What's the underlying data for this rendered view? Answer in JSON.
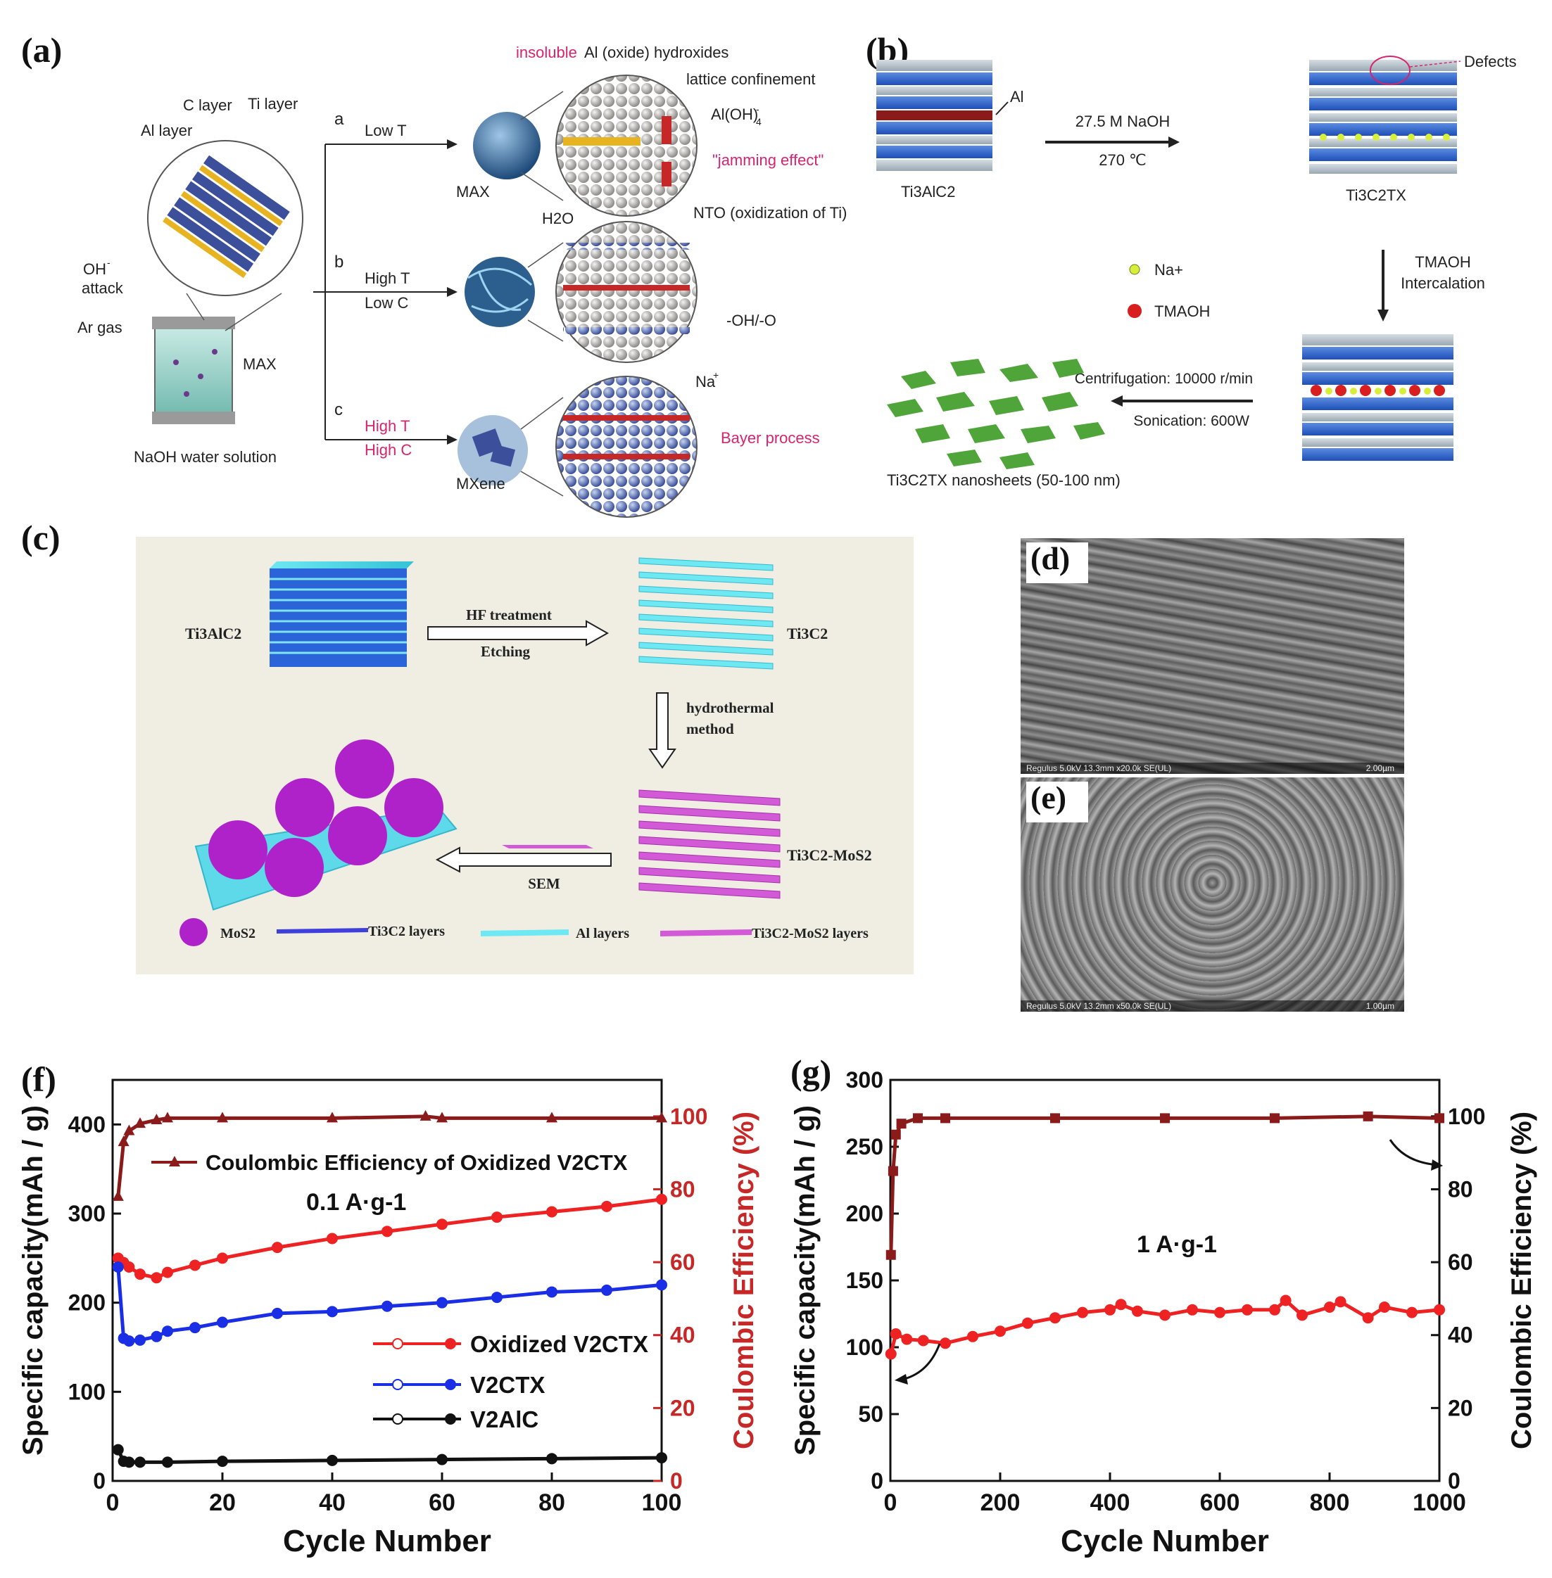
{
  "labels": {
    "a": "(a)",
    "b": "(b)",
    "c": "(c)",
    "d": "(d)",
    "e": "(e)",
    "f": "(f)",
    "g": "(g)"
  },
  "panel_a": {
    "c_layer": "C layer",
    "ti_layer": "Ti layer",
    "al_layer": "Al layer",
    "oh_attack_1": "OH",
    "oh_attack_sup": "-",
    "oh_attack_2": "attack",
    "ar_gas": "Ar gas",
    "max_vessel": "MAX",
    "naoh": "NaOH water solution",
    "route_a": "a",
    "route_b": "b",
    "route_c": "c",
    "low_t": "Low T",
    "high_t_b": "High T",
    "low_c": "Low C",
    "high_t_c": "High T",
    "high_c": "High C",
    "max_sphere": "MAX",
    "mxene": "MXene",
    "insoluble_1": "insoluble",
    "insoluble_2": "Al (oxide) hydroxides",
    "lattice": "lattice confinement",
    "aloh4": "Al(OH)",
    "aloh4_sub": "4",
    "aloh4_sup": "-",
    "jamming": "\"jamming effect\"",
    "h2o": "H2O",
    "nto": "NTO (oxidization of Ti)",
    "ohterm": "-OH/-O",
    "na_plus": "Na",
    "na_sup": "+",
    "bayer": "Bayer process"
  },
  "panel_b": {
    "al": "Al",
    "ti3alc2": "Ti3AlC2",
    "naoh": "27.5 M NaOH",
    "temp": "270 ℃",
    "defects": "Defects",
    "ti3c2tx": "Ti3C2TX",
    "na_legend": "Na+",
    "tmaoh_legend": "TMAOH",
    "tmaoh_1": "TMAOH",
    "tmaoh_2": "Intercalation",
    "centri": "Centrifugation: 10000 r/min",
    "sonic": "Sonication:  600W",
    "nanosheets": "Ti3C2TX nanosheets (50-100 nm)"
  },
  "panel_c": {
    "ti3alc2": "Ti3AlC2",
    "hf_1": "HF treatment",
    "hf_2": "Etching",
    "ti3c2": "Ti3C2",
    "hydro_1": "hydrothermal",
    "hydro_2": "method",
    "ti3c2_mos2": "Ti3C2-MoS2",
    "sem": "SEM",
    "leg_mos2": "MoS2",
    "leg_ti3c2": "Ti3C2 layers",
    "leg_al": "Al layers",
    "leg_ti3c2mos2": "Ti3C2-MoS2 layers"
  },
  "panel_d": {
    "footer": "Regulus 5.0kV 13.3mm x20.0k SE(UL)",
    "scale": "2.00µm"
  },
  "panel_e": {
    "footer": "Regulus 5.0kV 13.2mm x50.0k SE(UL)",
    "scale": "1.00µm"
  },
  "chart_data": [
    {
      "id": "f",
      "type": "line",
      "xlabel": "Cycle Number",
      "ylabel": "Specific capacity(mAh / g)",
      "y2label": "Coulombic Efficiency (%)",
      "xlim": [
        0,
        100
      ],
      "ylim": [
        0,
        450
      ],
      "y2lim": [
        0,
        110
      ],
      "xticks": [
        0,
        20,
        40,
        60,
        80,
        100
      ],
      "yticks": [
        0,
        100,
        200,
        300,
        400
      ],
      "y2ticks": [
        0,
        20,
        40,
        60,
        80,
        100
      ],
      "rate_label": "0.1 A·g-1",
      "series": [
        {
          "name": "Coulombic Efficiency of Oxidized V2CTX",
          "axis": "right",
          "color": "#8b1a1a",
          "marker": "triangle",
          "x": [
            1,
            2,
            3,
            5,
            8,
            10,
            20,
            40,
            57,
            60,
            80,
            100
          ],
          "values": [
            78,
            93,
            96,
            98,
            99,
            99.5,
            99.5,
            99.5,
            100,
            99.5,
            99.5,
            99.5
          ]
        },
        {
          "name": "Oxidized V2CTX",
          "axis": "left",
          "color": "#ee2222",
          "marker": "circle",
          "x": [
            1,
            2,
            3,
            5,
            8,
            10,
            15,
            20,
            30,
            40,
            50,
            60,
            70,
            80,
            90,
            100
          ],
          "values": [
            250,
            245,
            240,
            232,
            228,
            234,
            242,
            250,
            262,
            272,
            280,
            288,
            296,
            302,
            308,
            316
          ]
        },
        {
          "name": "V2CTX",
          "axis": "left",
          "color": "#1a2ee6",
          "marker": "circle",
          "x": [
            1,
            2,
            3,
            5,
            8,
            10,
            15,
            20,
            30,
            40,
            50,
            60,
            70,
            80,
            90,
            100
          ],
          "values": [
            240,
            160,
            157,
            158,
            162,
            168,
            172,
            178,
            188,
            190,
            196,
            200,
            206,
            212,
            214,
            220
          ]
        },
        {
          "name": "V2AlC",
          "axis": "left",
          "color": "#111111",
          "marker": "circle",
          "x": [
            1,
            2,
            3,
            5,
            10,
            20,
            40,
            60,
            80,
            100
          ],
          "values": [
            35,
            22,
            21,
            21,
            21,
            22,
            23,
            24,
            25,
            26
          ]
        }
      ]
    },
    {
      "id": "g",
      "type": "line",
      "xlabel": "Cycle Number",
      "ylabel": "Specific capacity(mAh / g)",
      "y2label": "Coulombic Efficiency (%)",
      "xlim": [
        0,
        1000
      ],
      "ylim": [
        0,
        300
      ],
      "y2lim": [
        0,
        110
      ],
      "xticks": [
        0,
        200,
        400,
        600,
        800,
        1000
      ],
      "yticks": [
        0,
        50,
        100,
        150,
        200,
        250,
        300
      ],
      "y2ticks": [
        0,
        20,
        40,
        60,
        80,
        100
      ],
      "rate_label": "1 A·g-1",
      "series": [
        {
          "name": "Coulombic Efficiency",
          "axis": "right",
          "color": "#8b1a1a",
          "marker": "square",
          "x": [
            1,
            5,
            10,
            20,
            50,
            100,
            300,
            500,
            700,
            870,
            1000
          ],
          "values": [
            62,
            85,
            95,
            98,
            99.5,
            99.5,
            99.5,
            99.5,
            99.5,
            100,
            99.5
          ]
        },
        {
          "name": "Specific capacity",
          "axis": "left",
          "color": "#ee2222",
          "marker": "circle",
          "x": [
            1,
            10,
            30,
            60,
            100,
            150,
            200,
            250,
            300,
            350,
            400,
            420,
            450,
            500,
            550,
            600,
            650,
            700,
            720,
            750,
            800,
            820,
            870,
            900,
            950,
            1000
          ],
          "values": [
            95,
            110,
            106,
            105,
            103,
            108,
            112,
            118,
            122,
            126,
            128,
            132,
            127,
            124,
            128,
            126,
            128,
            128,
            135,
            124,
            130,
            134,
            122,
            130,
            126,
            128
          ]
        }
      ]
    }
  ]
}
